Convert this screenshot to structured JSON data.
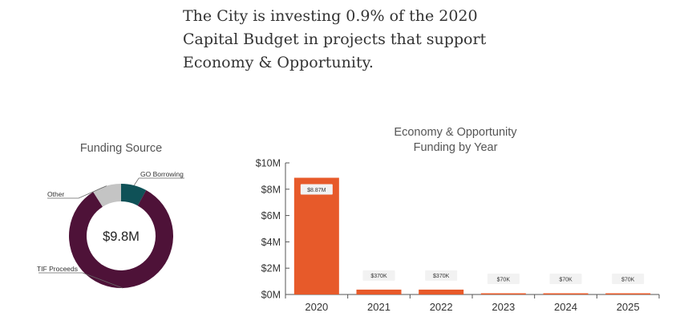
{
  "headline": {
    "lines": [
      "The City is investing 0.9% of the 2020",
      "Capital Budget in projects that support",
      "Economy & Opportunity."
    ]
  },
  "chart_data": [
    {
      "type": "pie",
      "title": "Funding Source",
      "center_label": "$9.8M",
      "categories": [
        "GO Borrowing",
        "TIF Proceeds",
        "Other"
      ],
      "values": [
        8,
        83,
        9
      ],
      "colors": [
        "#0f5157",
        "#4e1238",
        "#c4c4c4"
      ],
      "donut": true
    },
    {
      "type": "bar",
      "title": "Economy & Opportunity\nFunding by Year",
      "categories": [
        "2020",
        "2021",
        "2022",
        "2023",
        "2024",
        "2025"
      ],
      "values": [
        8870000,
        370000,
        370000,
        70000,
        70000,
        70000
      ],
      "data_labels": [
        "$8.87M",
        "$370K",
        "$370K",
        "$70K",
        "$70K",
        "$70K"
      ],
      "yticks": [
        0,
        2000000,
        4000000,
        6000000,
        8000000,
        10000000
      ],
      "ytick_labels": [
        "$0M",
        "$2M",
        "$4M",
        "$6M",
        "$8M",
        "$10M"
      ],
      "ylim": [
        0,
        10000000
      ],
      "bar_color": "#e75a2a",
      "grid": false
    }
  ]
}
